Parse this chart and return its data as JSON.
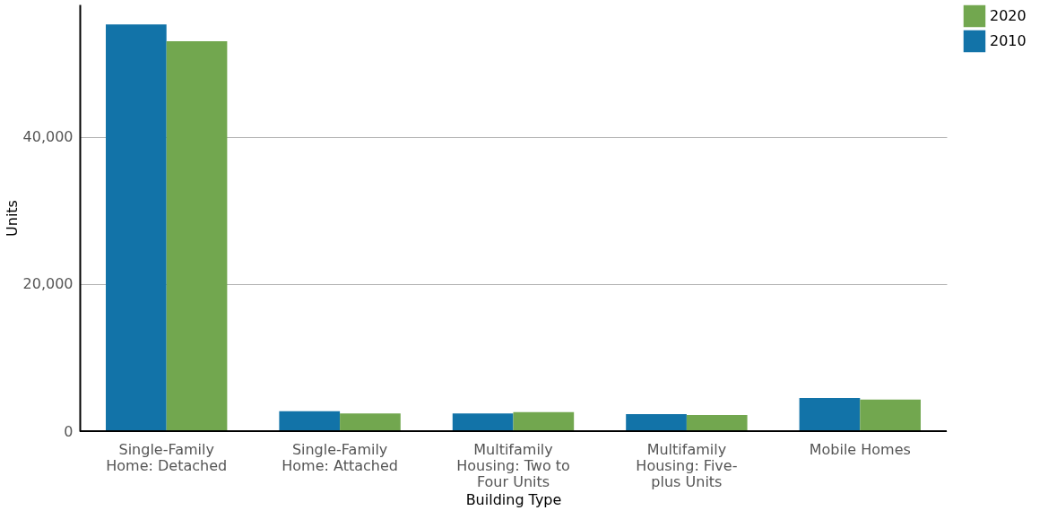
{
  "chart_data": {
    "type": "bar",
    "xlabel": "Building Type",
    "ylabel": "Units",
    "categories": [
      "Single-Family Home: Detached",
      "Single-Family Home: Attached",
      "Multifamily Housing: Two to Four Units",
      "Multifamily Housing: Five-plus Units",
      "Mobile Homes"
    ],
    "series": [
      {
        "name": "2010",
        "color": "#1273a8",
        "values": [
          55300,
          2700,
          2400,
          2300,
          4500
        ]
      },
      {
        "name": "2020",
        "color": "#72a74f",
        "values": [
          53000,
          2400,
          2600,
          2200,
          4300
        ]
      }
    ],
    "ylim": [
      0,
      58000
    ],
    "yticks": [
      0,
      {
        "value": 20000,
        "label": "20,000"
      },
      {
        "value": 40000,
        "label": "40,000"
      }
    ],
    "grid": "y",
    "legend": "right"
  }
}
